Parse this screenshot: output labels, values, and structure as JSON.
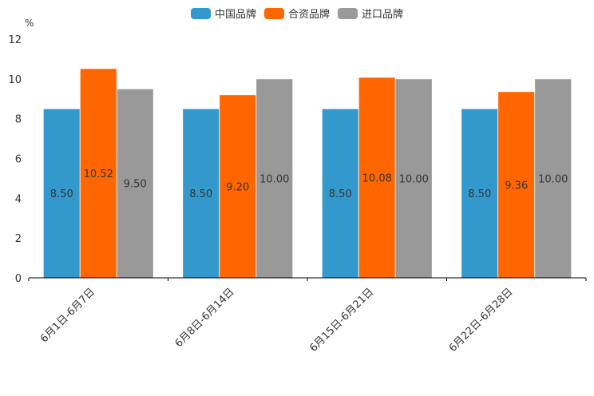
{
  "chart_data": {
    "type": "bar",
    "title": "",
    "ylabel": "%",
    "xlabel": "",
    "ylim": [
      0,
      12
    ],
    "yticks": [
      0,
      2,
      4,
      6,
      8,
      10,
      12
    ],
    "grid": false,
    "legend_position": "top-center",
    "categories": [
      "6月1日-6月7日",
      "6月8日-6月14日",
      "6月15日-6月21日",
      "6月22日-6月28日"
    ],
    "series": [
      {
        "name": "中国品牌",
        "color": "#3399CC",
        "values": [
          8.5,
          8.5,
          8.5,
          8.5
        ],
        "labels": [
          "8.50",
          "8.50",
          "8.50",
          "8.50"
        ]
      },
      {
        "name": "合资品牌",
        "color": "#FF6600",
        "values": [
          10.52,
          9.2,
          10.08,
          9.36
        ],
        "labels": [
          "10.52",
          "9.20",
          "10.08",
          "9.36"
        ]
      },
      {
        "name": "进口品牌",
        "color": "#999999",
        "values": [
          9.5,
          10.0,
          10.0,
          10.0
        ],
        "labels": [
          "9.50",
          "10.00",
          "10.00",
          "10.00"
        ]
      }
    ]
  }
}
